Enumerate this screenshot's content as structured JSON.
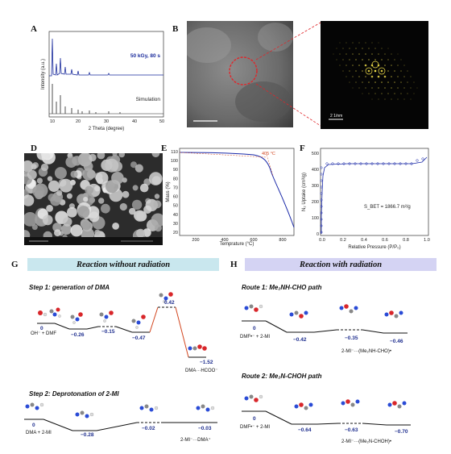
{
  "panels": {
    "A": {
      "label": "A",
      "ylabel": "Intensity (a.u.)",
      "xlabel": "2 Theta (degree)",
      "ticks": [
        "10",
        "20",
        "30",
        "40",
        "50"
      ],
      "top_trace_label": "50 kGy, 80 s",
      "bottom_trace_label": "Simulation"
    },
    "B": {
      "label": "B"
    },
    "C": {
      "label": "C",
      "scale_bar": "2 1/nm"
    },
    "D": {
      "label": "D"
    },
    "E": {
      "label": "E",
      "ylabel": "Mass (%)",
      "xlabel": "Temprature (°C)",
      "annotation": "405 °C",
      "xticks": [
        "200",
        "400",
        "600",
        "800"
      ],
      "yticks": [
        "110",
        "100",
        "90",
        "80",
        "70",
        "60",
        "50",
        "40",
        "30",
        "20"
      ]
    },
    "F": {
      "label": "F",
      "ylabel": "N₂ Uptake (cm³/g)",
      "xlabel": "Relative Pressure (P/P₀)",
      "bet": "S_BET = 1866.7 m²/g",
      "xticks": [
        "0.0",
        "0.2",
        "0.4",
        "0.6",
        "0.8",
        "1.0"
      ],
      "yticks": [
        "500",
        "400",
        "300",
        "200",
        "100",
        "0"
      ]
    },
    "G": {
      "label": "G",
      "banner": "Reaction without radiation",
      "step1": {
        "title": "Step 1: generation of DMA",
        "energies": [
          "0",
          "−0.26",
          "−0.15",
          "−0.47",
          "0.42",
          "−1.52"
        ],
        "start_label": "OH⁻ + DMF",
        "end_label": "DMA···HCOO⁻"
      },
      "step2": {
        "title": "Step 2: Deprotonation of 2-MI",
        "energies": [
          "0",
          "−0.28",
          "−0.02",
          "−0.03"
        ],
        "start_label": "DMA + 2-MI",
        "end_label": "2-MI⁻···DMA⁺"
      }
    },
    "H": {
      "label": "H",
      "banner": "Reaction with radiation",
      "route1": {
        "title": "Route 1: Me₂NH-CHO path",
        "energies": [
          "0",
          "−0.42",
          "−0.35",
          "−0.46"
        ],
        "start_label": "DMF•⁻ + 2-MI",
        "end_label": "2-MI⁻···(Me₂NH-CHO)•"
      },
      "route2": {
        "title": "Route 2: Me₂N-CHOH path",
        "energies": [
          "0",
          "−0.64",
          "−0.63",
          "−0.70"
        ],
        "start_label": "DMF•⁻ + 2-MI",
        "end_label": "2-MI⁻···(Me₂N-CHOH)•"
      }
    }
  },
  "colors": {
    "xrd_top": "#1a2b9c",
    "banner_G": "#c9e7ee",
    "banner_H": "#d4d3f3",
    "energy_text": "#1f2f8f",
    "barrier_line": "#d2451e",
    "tga_curve": "#1b2aa8",
    "iso_curve": "#1b2aa8"
  }
}
